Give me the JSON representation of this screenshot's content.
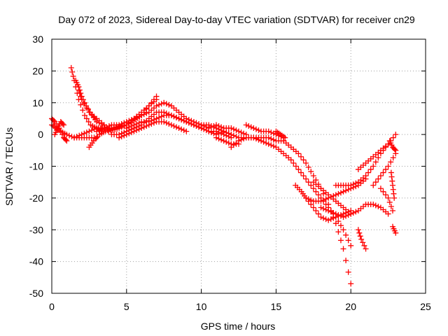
{
  "chart_data": {
    "type": "scatter",
    "title": "Day 072 of 2023, Sidereal Day-to-day VTEC variation (SDTVAR) for receiver cn29",
    "xlabel": "GPS time / hours",
    "ylabel": "SDTVAR / TECUs",
    "xlim": [
      0,
      25
    ],
    "ylim": [
      -50,
      30
    ],
    "x_ticks": [
      0,
      5,
      10,
      15,
      20,
      25
    ],
    "y_ticks": [
      30,
      20,
      10,
      0,
      -10,
      -20,
      -30,
      -40,
      -50
    ],
    "grid": true,
    "marker": "+",
    "series": [
      {
        "name": "SDTVAR",
        "color": "#ff0000",
        "tracks": [
          {
            "x": [
              0.0,
              0.3,
              0.6,
              1.0,
              1.5,
              2.0,
              2.5,
              3.0
            ],
            "y": [
              3,
              2,
              1,
              0,
              -1,
              -1,
              -1,
              -1
            ]
          },
          {
            "x": [
              0.0,
              0.2,
              0.5,
              0.8,
              1.0
            ],
            "y": [
              5,
              4,
              2,
              -1,
              -2
            ]
          },
          {
            "x": [
              0.2,
              0.4,
              0.6,
              0.8
            ],
            "y": [
              0,
              2,
              4,
              3
            ]
          },
          {
            "x": [
              1.3,
              1.5,
              1.8,
              2.2,
              2.6,
              3.0,
              3.4,
              4.0,
              5.0,
              6.0,
              6.5,
              7.0
            ],
            "y": [
              21,
              17,
              11,
              6,
              3,
              2,
              2,
              2,
              3,
              6,
              9,
              11
            ]
          },
          {
            "x": [
              1.6,
              1.8,
              2.0,
              2.3,
              2.7,
              3.0,
              3.5
            ],
            "y": [
              17,
              15,
              12,
              9,
              6,
              4,
              3
            ]
          },
          {
            "x": [
              1.8,
              2.0,
              2.5,
              3.0,
              3.5
            ],
            "y": [
              14,
              11,
              7,
              5,
              3
            ]
          },
          {
            "x": [
              1.5,
              2.0,
              2.5,
              3.0,
              3.3
            ],
            "y": [
              -1,
              0,
              1,
              2,
              1
            ]
          },
          {
            "x": [
              2.5,
              2.8,
              3.2,
              3.6,
              4.0
            ],
            "y": [
              -4,
              -2,
              0,
              1,
              2
            ]
          },
          {
            "x": [
              3.0,
              3.5,
              4.0,
              4.5,
              5.0,
              5.5,
              6.0,
              6.5,
              7.0
            ],
            "y": [
              1,
              2,
              3,
              3,
              4,
              5,
              7,
              9,
              12
            ]
          },
          {
            "x": [
              3.8,
              4.5,
              5.0,
              5.5,
              6.0,
              6.5,
              7.0,
              7.5,
              8.0,
              8.5,
              9.0,
              9.5,
              10.0,
              10.5,
              11.0,
              11.5,
              12.0
            ],
            "y": [
              1,
              2,
              3,
              5,
              6,
              7,
              9,
              10,
              9,
              7,
              5,
              4,
              3,
              3,
              2,
              1,
              0
            ]
          },
          {
            "x": [
              4.0,
              4.5,
              5.0,
              5.5,
              6.0,
              6.5,
              7.0,
              7.5,
              8.0,
              8.5,
              9.0,
              9.5,
              10.0,
              10.5,
              11.0,
              11.5,
              12.0
            ],
            "y": [
              0,
              0,
              1,
              2,
              3,
              5,
              7,
              7,
              6,
              5,
              4,
              3,
              2,
              1,
              1,
              0,
              -1
            ]
          },
          {
            "x": [
              5.0,
              5.5,
              6.0,
              6.5,
              7.0,
              7.5,
              8.0,
              8.5,
              9.0,
              9.5,
              10.0
            ],
            "y": [
              2,
              3,
              4,
              4,
              5,
              6,
              6,
              5,
              4,
              3,
              2
            ]
          },
          {
            "x": [
              4.5,
              5.0,
              5.5,
              6.0,
              6.5,
              7.0,
              7.5,
              8.0,
              8.5,
              9.0
            ],
            "y": [
              -1,
              0,
              1,
              2,
              3,
              4,
              4,
              3,
              2,
              1
            ]
          },
          {
            "x": [
              10.0,
              10.5,
              11.0,
              11.5,
              12.0,
              12.5,
              13.0
            ],
            "y": [
              3,
              2,
              3,
              2,
              2,
              1,
              0
            ]
          },
          {
            "x": [
              10.5,
              11.0,
              11.5,
              12.0,
              12.5,
              13.0,
              13.5,
              14.0,
              14.5,
              15.0,
              15.5
            ],
            "y": [
              1,
              0,
              1,
              0,
              -1,
              -1,
              -1,
              -1,
              -1,
              -2,
              -2
            ]
          },
          {
            "x": [
              11.0,
              11.5,
              12.0,
              12.5
            ],
            "y": [
              -1,
              -2,
              -3,
              -3
            ]
          },
          {
            "x": [
              12.0,
              12.5,
              13.0,
              13.5,
              14.0,
              14.5,
              15.0,
              15.5,
              16.0,
              16.5,
              17.0,
              17.5,
              18.0,
              18.5,
              19.0,
              19.5,
              20.0
            ],
            "y": [
              -4,
              -2,
              -1,
              -1,
              -2,
              -3,
              -4,
              -6,
              -8,
              -11,
              -14,
              -17,
              -20,
              -23,
              -26,
              -30,
              -35
            ]
          },
          {
            "x": [
              13.0,
              13.5,
              14.0,
              14.5,
              15.0,
              15.5
            ],
            "y": [
              3,
              2,
              1,
              1,
              0,
              -1
            ]
          },
          {
            "x": [
              15.0,
              15.3,
              15.6
            ],
            "y": [
              1,
              0,
              -1
            ]
          },
          {
            "x": [
              15.5,
              16.0,
              16.5,
              17.0,
              17.5,
              18.0,
              18.5,
              19.0,
              19.5,
              20.0
            ],
            "y": [
              -2,
              -4,
              -6,
              -9,
              -13,
              -17,
              -22,
              -28,
              -36,
              -47
            ]
          },
          {
            "x": [
              16.3,
              16.7,
              17.0,
              17.5,
              18.0,
              18.5,
              19.0,
              19.5,
              20.0
            ],
            "y": [
              -16,
              -18,
              -20,
              -23,
              -26,
              -27,
              -26,
              -25,
              -24
            ]
          },
          {
            "x": [
              17.0,
              17.5,
              18.0,
              18.5,
              19.0,
              19.5,
              20.0,
              20.5,
              21.0
            ],
            "y": [
              -20,
              -21,
              -21,
              -20,
              -19,
              -18,
              -17,
              -16,
              -14
            ]
          },
          {
            "x": [
              17.5,
              18.0,
              18.5,
              19.0,
              19.5,
              20.0
            ],
            "y": [
              -15,
              -17,
              -19,
              -21,
              -23,
              -25
            ]
          },
          {
            "x": [
              18.0,
              18.5,
              19.0,
              19.5,
              20.0,
              20.5,
              21.0,
              21.5,
              22.0,
              22.5
            ],
            "y": [
              -23,
              -24,
              -25,
              -26,
              -25,
              -24,
              -22,
              -22,
              -23,
              -25
            ]
          },
          {
            "x": [
              19.0,
              19.5,
              20.0,
              20.5,
              21.0,
              21.5,
              22.0,
              22.5,
              23.0
            ],
            "y": [
              -16,
              -16,
              -16,
              -15,
              -13,
              -10,
              -6,
              -3,
              0
            ]
          },
          {
            "x": [
              20.5,
              20.7,
              21.0
            ],
            "y": [
              -30,
              -33,
              -36
            ]
          },
          {
            "x": [
              20.5,
              21.0,
              21.5,
              22.0,
              22.5
            ],
            "y": [
              -11,
              -9,
              -7,
              -5,
              -3
            ]
          },
          {
            "x": [
              21.5,
              22.0,
              22.5,
              23.0
            ],
            "y": [
              -16,
              -13,
              -10,
              -6
            ]
          },
          {
            "x": [
              22.0,
              22.5,
              22.8
            ],
            "y": [
              -17,
              -20,
              -24
            ]
          },
          {
            "x": [
              22.7,
              22.8,
              22.9
            ],
            "y": [
              -12,
              -16,
              -20
            ]
          },
          {
            "x": [
              22.8,
              23.0
            ],
            "y": [
              -29,
              -31
            ]
          },
          {
            "x": [
              22.6,
              22.8,
              23.0
            ],
            "y": [
              -2,
              -4,
              -5
            ]
          }
        ]
      }
    ]
  }
}
